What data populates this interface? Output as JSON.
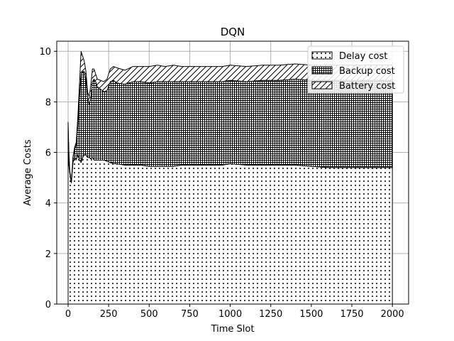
{
  "chart_data": {
    "type": "area",
    "stacked": true,
    "title": "DQN",
    "xlabel": "Time Slot",
    "ylabel": "Average Costs",
    "xlim": [
      -70,
      2100
    ],
    "ylim": [
      0,
      10.4
    ],
    "xticks": [
      0,
      250,
      500,
      750,
      1000,
      1250,
      1500,
      1750,
      2000
    ],
    "yticks": [
      0,
      2,
      4,
      6,
      8,
      10
    ],
    "grid": true,
    "legend_position": "top-right",
    "x": [
      0,
      5,
      10,
      20,
      30,
      40,
      50,
      60,
      70,
      80,
      90,
      100,
      110,
      120,
      130,
      140,
      150,
      160,
      170,
      180,
      200,
      220,
      240,
      260,
      280,
      300,
      350,
      400,
      450,
      500,
      550,
      600,
      650,
      700,
      750,
      800,
      850,
      900,
      950,
      1000,
      1100,
      1200,
      1300,
      1400,
      1500,
      1600,
      1700,
      1800,
      1900,
      2000
    ],
    "series": [
      {
        "name": "Delay cost",
        "pattern": "dots",
        "values": [
          5.8,
          5.5,
          5.2,
          4.8,
          5.6,
          5.8,
          5.7,
          5.9,
          5.7,
          5.6,
          5.8,
          5.9,
          5.9,
          5.8,
          5.8,
          5.75,
          5.8,
          5.7,
          5.7,
          5.7,
          5.7,
          5.7,
          5.65,
          5.6,
          5.55,
          5.55,
          5.5,
          5.5,
          5.5,
          5.45,
          5.45,
          5.45,
          5.45,
          5.5,
          5.5,
          5.5,
          5.5,
          5.5,
          5.5,
          5.55,
          5.5,
          5.5,
          5.5,
          5.5,
          5.45,
          5.4,
          5.4,
          5.4,
          5.4,
          5.4
        ]
      },
      {
        "name": "Backup cost",
        "pattern": "grid",
        "values": [
          1.2,
          0.4,
          0.1,
          0.0,
          0.2,
          0.3,
          0.6,
          1.2,
          2.5,
          3.5,
          3.4,
          3.3,
          3.0,
          2.4,
          2.1,
          2.4,
          3.0,
          3.2,
          3.1,
          2.9,
          2.8,
          2.7,
          2.8,
          3.2,
          3.3,
          3.2,
          3.2,
          3.3,
          3.3,
          3.3,
          3.35,
          3.35,
          3.35,
          3.3,
          3.3,
          3.3,
          3.3,
          3.3,
          3.3,
          3.3,
          3.3,
          3.35,
          3.35,
          3.4,
          3.4,
          3.45,
          3.45,
          3.45,
          3.45,
          3.45
        ]
      },
      {
        "name": "Battery cost",
        "pattern": "hatch",
        "values": [
          0.2,
          0.1,
          0.0,
          0.0,
          0.0,
          0.1,
          0.1,
          0.3,
          0.5,
          0.9,
          0.6,
          0.4,
          0.3,
          0.2,
          0.3,
          0.5,
          0.5,
          0.4,
          0.3,
          0.3,
          0.35,
          0.4,
          0.45,
          0.5,
          0.55,
          0.6,
          0.55,
          0.6,
          0.6,
          0.65,
          0.65,
          0.6,
          0.65,
          0.6,
          0.6,
          0.6,
          0.6,
          0.6,
          0.6,
          0.6,
          0.6,
          0.6,
          0.6,
          0.6,
          0.6,
          0.6,
          0.6,
          0.6,
          0.6,
          0.6
        ]
      }
    ]
  }
}
